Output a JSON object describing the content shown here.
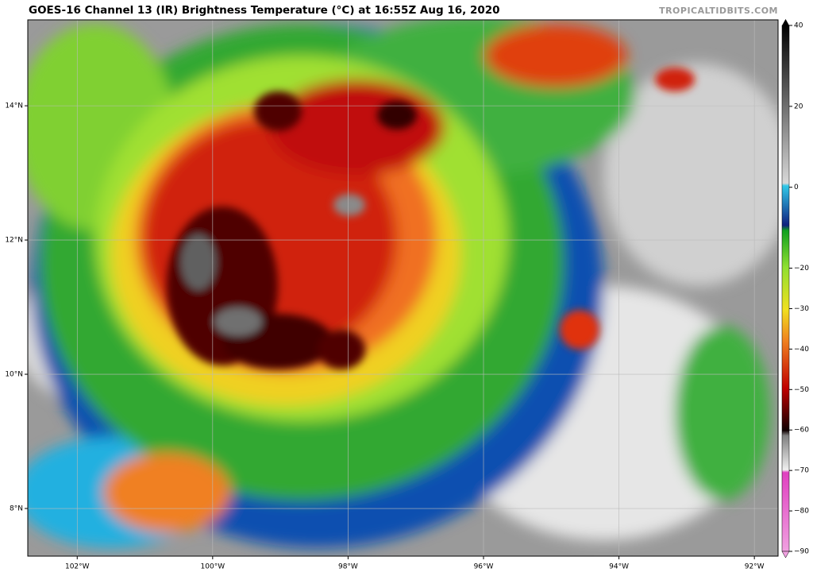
{
  "header": {
    "title": "GOES-16 Channel 13 (IR) Brightness Temperature (°C) at 16:55Z Aug 16, 2020",
    "watermark": "TROPICALTIDBITS.COM"
  },
  "map": {
    "latlim": [
      7.29,
      15.28
    ],
    "lonlim": [
      -102.73,
      -91.65
    ],
    "lat_ticks": [
      {
        "value": 8,
        "label": "8°N"
      },
      {
        "value": 10,
        "label": "10°N"
      },
      {
        "value": 12,
        "label": "12°N"
      },
      {
        "value": 14,
        "label": "14°N"
      }
    ],
    "lon_ticks": [
      {
        "value": -102,
        "label": "102°W"
      },
      {
        "value": -100,
        "label": "100°W"
      },
      {
        "value": -98,
        "label": "98°W"
      },
      {
        "value": -96,
        "label": "96°W"
      },
      {
        "value": -94,
        "label": "94°W"
      },
      {
        "value": -92,
        "label": "92°W"
      }
    ]
  },
  "colorbar": {
    "lim": [
      -90,
      40
    ],
    "ticks": [
      40,
      20,
      0,
      {
        "value": -20,
        "label": "−20"
      },
      {
        "value": -30,
        "label": "−30"
      },
      {
        "value": -40,
        "label": "−40"
      },
      {
        "value": -50,
        "label": "−50"
      },
      {
        "value": -60,
        "label": "−60"
      },
      {
        "value": -70,
        "label": "−70"
      },
      {
        "value": -80,
        "label": "−80"
      },
      {
        "value": -90,
        "label": "−90"
      }
    ]
  }
}
